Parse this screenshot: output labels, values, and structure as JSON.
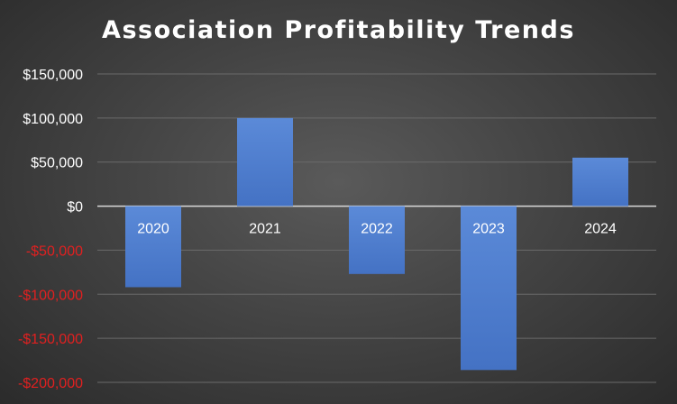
{
  "chart_data": {
    "type": "bar",
    "title": "Association Profitability Trends",
    "categories": [
      "2020",
      "2021",
      "2022",
      "2023",
      "2024"
    ],
    "values": [
      -92000,
      100000,
      -77000,
      -186000,
      55000
    ],
    "xlabel": "",
    "ylabel": "",
    "ylim": [
      -200000,
      150000
    ],
    "yticks": [
      150000,
      100000,
      50000,
      0,
      -50000,
      -100000,
      -150000,
      -200000
    ],
    "ytick_labels": [
      "$150,000",
      "$100,000",
      "$50,000",
      "$0",
      "-$50,000",
      "-$100,000",
      "-$150,000",
      "-$200,000"
    ],
    "grid": true,
    "legend": "none",
    "colors": {
      "bar": "#4472c4",
      "bar_light": "#5b8ad8",
      "grid": "#6a6a6a",
      "zero_line": "#d9d9d9",
      "positive_label": "#ffffff",
      "negative_label": "#e02020",
      "category_label": "#ffffff"
    }
  }
}
